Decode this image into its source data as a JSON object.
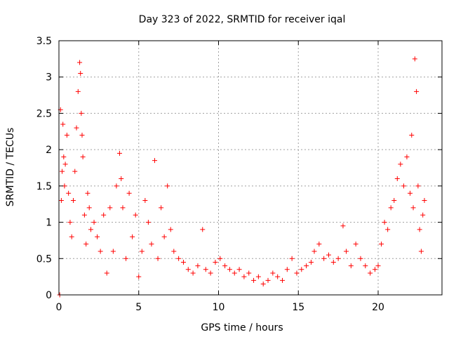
{
  "chart_data": {
    "type": "scatter",
    "title": "Day 323 of 2022, SRMTID for receiver iqal",
    "xlabel": "GPS time / hours",
    "ylabel": "SRMTID / TECUs",
    "xlim": [
      0,
      24
    ],
    "ylim": [
      0,
      3.5
    ],
    "x_ticks": [
      0,
      5,
      10,
      15,
      20
    ],
    "x_tick_labels": [
      "0",
      "5",
      "10",
      "15",
      "20"
    ],
    "y_ticks": [
      0,
      0.5,
      1,
      1.5,
      2,
      2.5,
      3,
      3.5
    ],
    "y_tick_labels": [
      "0",
      "0.5",
      "1",
      "1.5",
      "2",
      "2.5",
      "3",
      "3.5"
    ],
    "grid": true,
    "marker": "plus",
    "colors": {
      "series": "#ff0000",
      "grid": "#a0a0a0",
      "axis": "#000000"
    },
    "series": [
      {
        "name": "SRMTID",
        "x": [
          0.05,
          0.1,
          0.15,
          0.2,
          0.25,
          0.3,
          0.35,
          0.4,
          0.5,
          0.6,
          0.7,
          0.8,
          0.9,
          1.0,
          1.1,
          1.2,
          1.3,
          1.35,
          1.4,
          1.45,
          1.5,
          1.6,
          1.7,
          1.8,
          1.9,
          2.0,
          2.2,
          2.4,
          2.6,
          2.8,
          3.0,
          3.2,
          3.4,
          3.6,
          3.8,
          3.9,
          4.0,
          4.2,
          4.4,
          4.6,
          4.8,
          5.0,
          5.2,
          5.4,
          5.6,
          5.8,
          6.0,
          6.2,
          6.4,
          6.6,
          6.8,
          7.0,
          7.2,
          7.5,
          7.8,
          8.1,
          8.4,
          8.7,
          9.0,
          9.2,
          9.5,
          9.8,
          10.1,
          10.4,
          10.7,
          11.0,
          11.3,
          11.6,
          11.9,
          12.2,
          12.5,
          12.8,
          13.1,
          13.4,
          13.7,
          14.0,
          14.3,
          14.6,
          14.9,
          15.2,
          15.5,
          15.8,
          16.0,
          16.3,
          16.6,
          16.9,
          17.2,
          17.5,
          17.8,
          18.0,
          18.3,
          18.6,
          18.9,
          19.2,
          19.5,
          19.8,
          20.0,
          20.2,
          20.4,
          20.6,
          20.8,
          21.0,
          21.2,
          21.4,
          21.6,
          21.8,
          22.0,
          22.1,
          22.2,
          22.3,
          22.4,
          22.5,
          22.6,
          22.7,
          22.8,
          22.9
        ],
        "y": [
          0.0,
          2.55,
          1.3,
          1.7,
          2.35,
          1.9,
          1.5,
          1.8,
          2.2,
          1.4,
          1.0,
          0.8,
          1.3,
          1.7,
          2.3,
          2.8,
          3.2,
          3.05,
          2.5,
          2.2,
          1.9,
          1.1,
          0.7,
          1.4,
          1.2,
          0.9,
          1.0,
          0.8,
          0.6,
          1.1,
          0.3,
          1.2,
          0.6,
          1.5,
          1.95,
          1.6,
          1.2,
          0.5,
          1.4,
          0.8,
          1.1,
          0.25,
          0.6,
          1.3,
          1.0,
          0.7,
          1.85,
          0.5,
          1.2,
          0.8,
          1.5,
          0.9,
          0.6,
          0.5,
          0.45,
          0.35,
          0.3,
          0.4,
          0.9,
          0.35,
          0.3,
          0.45,
          0.5,
          0.4,
          0.35,
          0.3,
          0.35,
          0.25,
          0.3,
          0.2,
          0.25,
          0.15,
          0.2,
          0.3,
          0.25,
          0.2,
          0.35,
          0.5,
          0.3,
          0.35,
          0.4,
          0.45,
          0.6,
          0.7,
          0.5,
          0.55,
          0.45,
          0.5,
          0.95,
          0.6,
          0.4,
          0.7,
          0.5,
          0.4,
          0.3,
          0.35,
          0.4,
          0.7,
          1.0,
          0.9,
          1.2,
          1.3,
          1.6,
          1.8,
          1.5,
          1.9,
          1.4,
          2.2,
          1.2,
          3.25,
          2.8,
          1.5,
          0.9,
          0.6,
          1.1,
          1.3
        ]
      }
    ]
  }
}
